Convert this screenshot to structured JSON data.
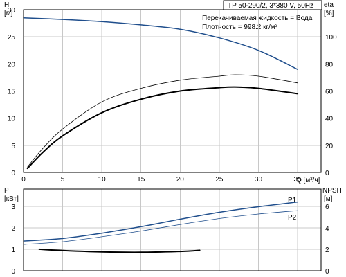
{
  "title": "TP 50-290/2, 3*380 V, 50Hz",
  "info": {
    "liquid": "Перекачиваемая жидкость = Вода",
    "density": "Плотность = 998.2 кг/м³"
  },
  "colors": {
    "blue": "#1f4e8c",
    "black": "#000000",
    "grid": "#c8c8c8"
  },
  "chart_data": [
    {
      "type": "line",
      "title": "TP 50-290/2, 3*380 V, 50Hz",
      "xlabel": "Q [м³/ч]",
      "ylabel": "H [м]",
      "ylabel_line1": "H",
      "ylabel_line2": "[м]",
      "y2label_line1": "eta",
      "y2label_line2": "[%]",
      "xlim": [
        0,
        38
      ],
      "ylim": [
        0,
        30
      ],
      "y2lim": [
        0,
        120
      ],
      "xticks": [
        0,
        5,
        10,
        15,
        20,
        25,
        30,
        35
      ],
      "yticks": [
        0,
        5,
        10,
        15,
        20,
        25,
        30
      ],
      "y2ticks": [
        0,
        20,
        40,
        60,
        80,
        100
      ],
      "grid": true,
      "series": [
        {
          "axis": "y",
          "color": "#1f4e8c",
          "width": 1.5,
          "x": [
            0,
            5,
            10,
            15,
            20,
            25,
            30,
            35
          ],
          "y": [
            28.5,
            28.2,
            27.8,
            27.2,
            26.4,
            24.8,
            22.5,
            19.0
          ]
        },
        {
          "axis": "y2",
          "color": "#000000",
          "width": 0.8,
          "x": [
            0.5,
            2.5,
            5,
            10,
            15,
            20,
            25,
            27,
            30,
            35
          ],
          "y": [
            4,
            18,
            32,
            52,
            62,
            68,
            71,
            72,
            71,
            66
          ]
        },
        {
          "axis": "y2",
          "color": "#000000",
          "width": 2,
          "x": [
            0.5,
            2.5,
            5,
            10,
            15,
            20,
            25,
            27,
            30,
            35
          ],
          "y": [
            3,
            15,
            27,
            44,
            54,
            60,
            62.5,
            63,
            62,
            58
          ]
        }
      ]
    },
    {
      "type": "line",
      "xlabel": "",
      "ylabel": "P [кВт]",
      "ylabel_line1": "P",
      "ylabel_line2": "[кВт]",
      "y2label_line1": "NPSH",
      "y2label_line2": "[м]",
      "xlim": [
        0,
        38
      ],
      "ylim": [
        0,
        3.8
      ],
      "y2lim": [
        0,
        7.6
      ],
      "xticks": [
        0,
        5,
        10,
        15,
        20,
        25,
        30,
        35
      ],
      "yticks": [
        0,
        1,
        2,
        3
      ],
      "y2ticks": [
        0,
        2,
        4,
        6
      ],
      "grid": true,
      "series": [
        {
          "name": "P1",
          "axis": "y",
          "color": "#1f4e8c",
          "width": 1.5,
          "x": [
            0,
            5,
            10,
            15,
            20,
            25,
            30,
            35
          ],
          "y": [
            1.38,
            1.5,
            1.75,
            2.05,
            2.4,
            2.72,
            2.98,
            3.2
          ]
        },
        {
          "name": "P2",
          "axis": "y",
          "color": "#1f4e8c",
          "width": 0.8,
          "x": [
            0,
            5,
            10,
            15,
            20,
            25,
            30,
            35
          ],
          "y": [
            1.22,
            1.35,
            1.58,
            1.85,
            2.15,
            2.43,
            2.64,
            2.8
          ]
        },
        {
          "axis": "y2",
          "color": "#000000",
          "width": 2,
          "x": [
            2,
            5,
            10,
            15,
            20,
            22.5
          ],
          "y": [
            2.0,
            1.88,
            1.75,
            1.72,
            1.8,
            1.9
          ]
        }
      ]
    }
  ]
}
